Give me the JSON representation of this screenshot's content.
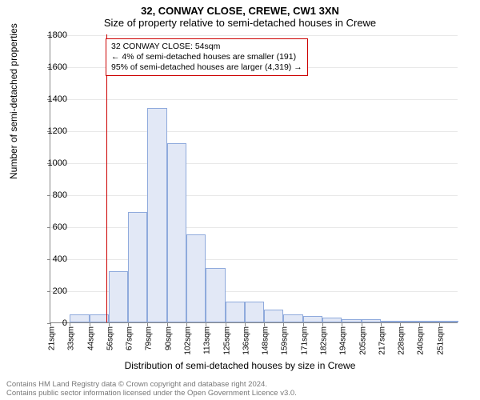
{
  "title": "32, CONWAY CLOSE, CREWE, CW1 3XN",
  "subtitle": "Size of property relative to semi-detached houses in Crewe",
  "ylabel": "Number of semi-detached properties",
  "xlabel": "Distribution of semi-detached houses by size in Crewe",
  "chart": {
    "type": "histogram",
    "ylim": [
      0,
      1800
    ],
    "ytick_step": 200,
    "bar_fill": "#e2e8f6",
    "bar_border": "#8faadc",
    "grid_color": "#e8e8e8",
    "background": "#ffffff",
    "refline_color": "#cc0000",
    "refline_x": 54,
    "x_start": 21,
    "x_step": 11.5,
    "x_count": 21,
    "x_unit": "sqm",
    "values": [
      0,
      50,
      50,
      320,
      690,
      1340,
      1120,
      550,
      340,
      130,
      130,
      80,
      50,
      40,
      30,
      20,
      20,
      10,
      5,
      5,
      3
    ]
  },
  "annotation": {
    "line1": "32 CONWAY CLOSE: 54sqm",
    "line2": "← 4% of semi-detached houses are smaller (191)",
    "line3": "95% of semi-detached houses are larger (4,319) →"
  },
  "footer": {
    "line1": "Contains HM Land Registry data © Crown copyright and database right 2024.",
    "line2": "Contains public sector information licensed under the Open Government Licence v3.0."
  }
}
